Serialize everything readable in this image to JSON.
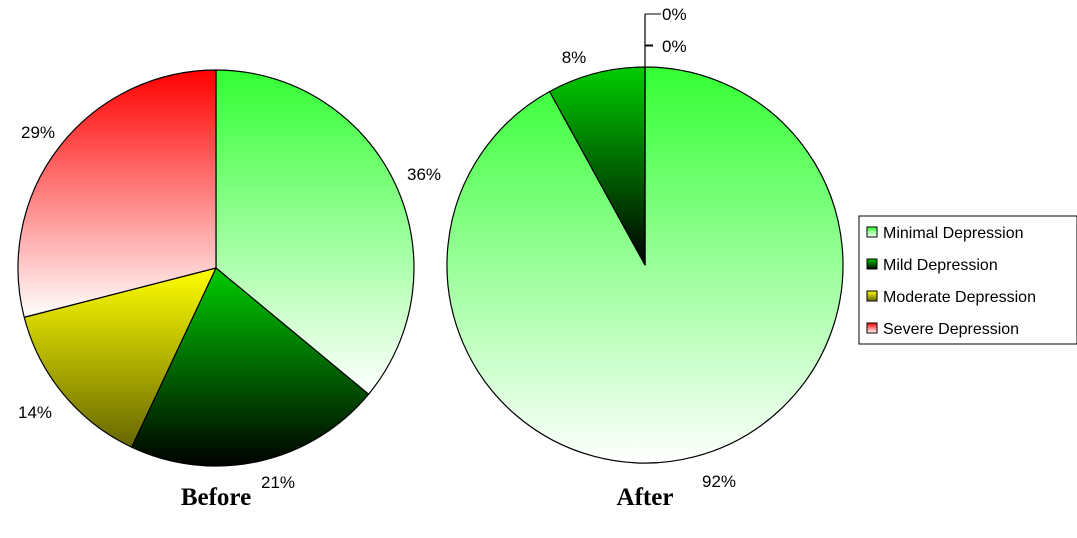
{
  "chart_data": [
    {
      "type": "pie",
      "caption": "Before",
      "start_angle_deg": 0,
      "direction": "clockwise",
      "slices": [
        {
          "label": "Minimal Depression",
          "value": 36,
          "value_label": "36%"
        },
        {
          "label": "Mild Depression",
          "value": 21,
          "value_label": "21%"
        },
        {
          "label": "Moderate Depression",
          "value": 14,
          "value_label": "14%"
        },
        {
          "label": "Severe Depression",
          "value": 29,
          "value_label": "29%"
        }
      ]
    },
    {
      "type": "pie",
      "caption": "After",
      "start_angle_deg": 0,
      "direction": "clockwise",
      "slices": [
        {
          "label": "Minimal Depression",
          "value": 92,
          "value_label": "92%"
        },
        {
          "label": "Mild Depression",
          "value": 8,
          "value_label": "8%"
        },
        {
          "label": "Moderate Depression",
          "value": 0,
          "value_label": "0%"
        },
        {
          "label": "Severe Depression",
          "value": 0,
          "value_label": "0%"
        }
      ]
    }
  ],
  "legend": {
    "placement": "right",
    "items": [
      {
        "label": "Minimal Depression",
        "color": "#33ff33"
      },
      {
        "label": "Mild Depression",
        "color": "#009900"
      },
      {
        "label": "Moderate Depression",
        "color": "#cccc00"
      },
      {
        "label": "Severe Depression",
        "color": "#ff6666"
      }
    ]
  },
  "colors": {
    "minimal_top": "#33ff33",
    "minimal_bottom": "#ffffff",
    "mild_top": "#00cc00",
    "mild_bottom": "#000000",
    "moderate_top": "#ffff00",
    "moderate_bottom": "#666600",
    "severe_top": "#ff0000",
    "severe_bottom": "#ffffff"
  }
}
